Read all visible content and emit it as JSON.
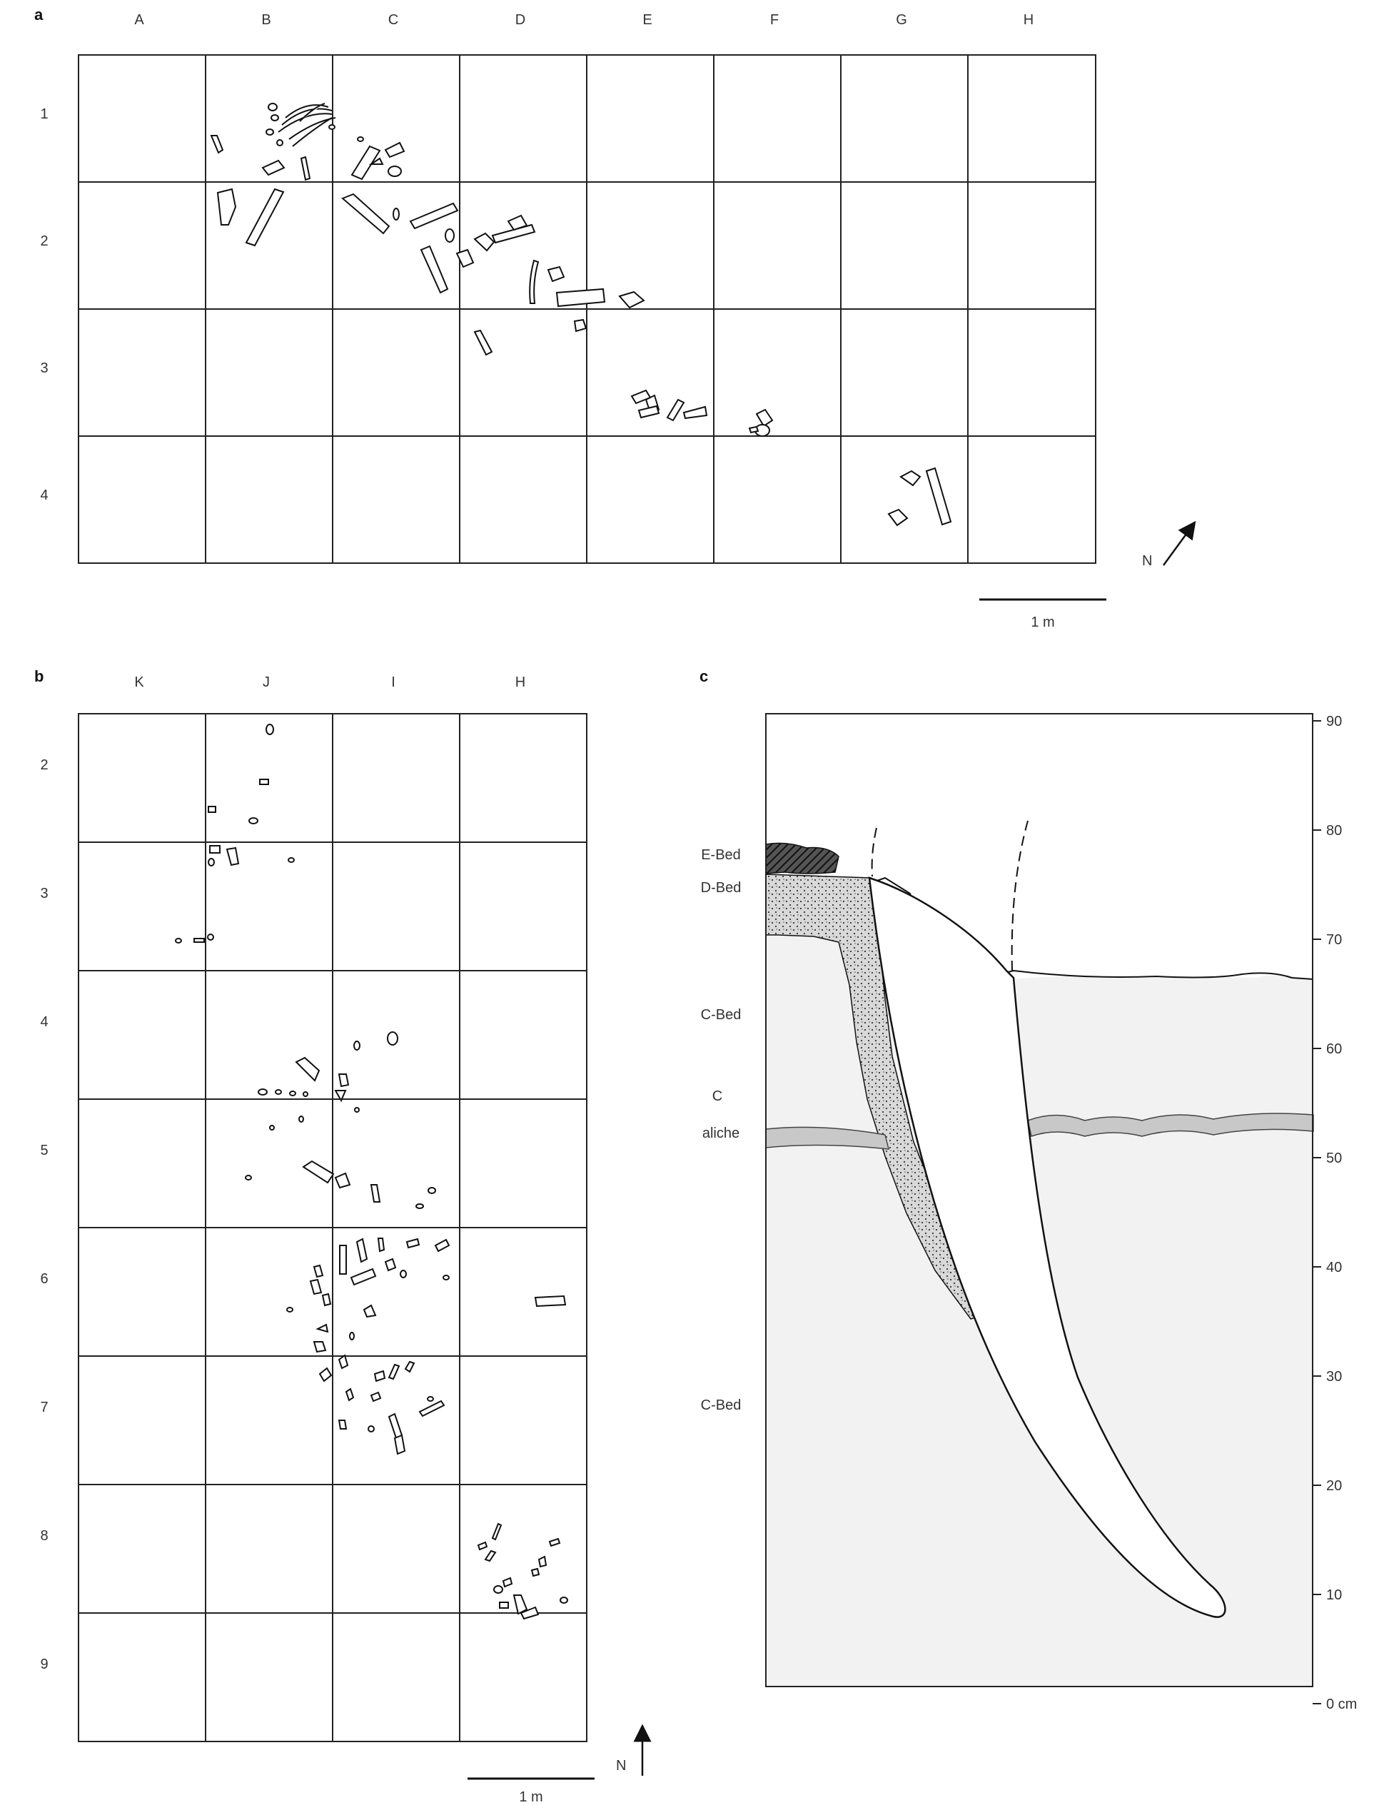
{
  "panels": {
    "a": {
      "letter": "a",
      "columns": [
        "A",
        "B",
        "C",
        "D",
        "E",
        "F",
        "G",
        "H"
      ],
      "rows": [
        "1",
        "2",
        "3",
        "4"
      ],
      "north_label": "N",
      "scale_label": "1 m"
    },
    "b": {
      "letter": "b",
      "columns": [
        "K",
        "J",
        "I",
        "H"
      ],
      "rows": [
        "2",
        "3",
        "4",
        "5",
        "6",
        "7",
        "8",
        "9"
      ],
      "north_label": "N",
      "scale_label": "1 m"
    },
    "c": {
      "letter": "c",
      "beds": [
        "E-Bed",
        "D-Bed",
        "C-Bed",
        "C",
        "aliche",
        "C-Bed"
      ],
      "axis_ticks": [
        "90",
        "80",
        "70",
        "60",
        "50",
        "40",
        "30",
        "20",
        "10",
        "0 cm"
      ]
    }
  },
  "colors": {
    "ink": "#111111",
    "sediment_fill": "#f2f2f2",
    "caliche_fill": "#c8c8c8",
    "dbed_fill": "#d9d9d9",
    "ebed_fill": "#555555"
  }
}
